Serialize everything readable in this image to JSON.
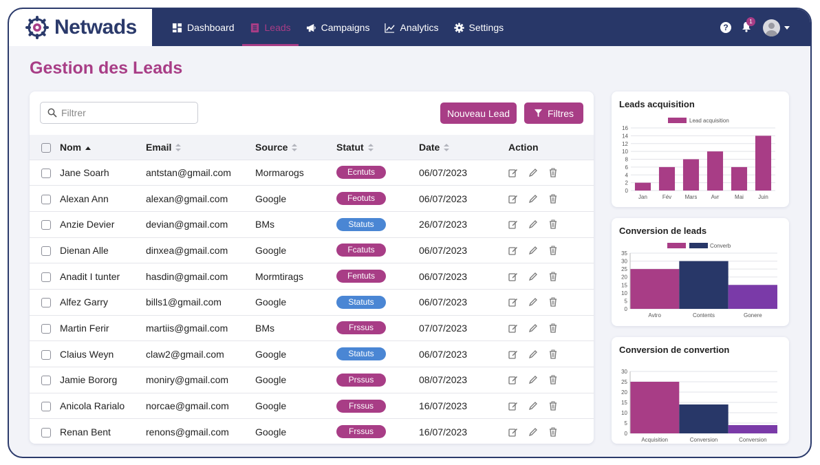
{
  "brand": {
    "name": "Netwads"
  },
  "nav": {
    "items": [
      {
        "label": "Dashboard",
        "icon": "dashboard-icon"
      },
      {
        "label": "Leads",
        "icon": "document-icon"
      },
      {
        "label": "Campaigns",
        "icon": "megaphone-icon"
      },
      {
        "label": "Analytics",
        "icon": "line-chart-icon"
      },
      {
        "label": "Settings",
        "icon": "gear-icon"
      }
    ],
    "active": "Leads",
    "help": "?",
    "notification_count": "1"
  },
  "page": {
    "title": "Gestion des Leads"
  },
  "toolbar": {
    "search_placeholder": "Filtrer",
    "new_label": "Nouveau Lead",
    "filter_label": "Filtres"
  },
  "table": {
    "headers": {
      "nom": "Nom",
      "email": "Email",
      "source": "Source",
      "statut": "Statut",
      "date": "Date",
      "action": "Action"
    },
    "rows": [
      {
        "nom": "Jane Soarh",
        "email": "antstan@gmail.com",
        "source": "Mormarogs",
        "statut": "Ecntuts",
        "statut_color": "#a83d86",
        "date": "06/07/2023"
      },
      {
        "nom": "Alexan Ann",
        "email": "alexan@gmail.com",
        "source": "Google",
        "statut": "Feotuts",
        "statut_color": "#a83d86",
        "date": "06/07/2023"
      },
      {
        "nom": "Anzie Devier",
        "email": "devian@gmail.com",
        "source": "BMs",
        "statut": "Statuts",
        "statut_color": "#4a86d4",
        "date": "26/07/2023"
      },
      {
        "nom": "Dienan Alle",
        "email": "dinxea@gmail.com",
        "source": "Google",
        "statut": "Fcatuts",
        "statut_color": "#a83d86",
        "date": "06/07/2023"
      },
      {
        "nom": "Anadit I tunter",
        "email": "hasdin@gmail.com",
        "source": "Mormtirags",
        "statut": "Fentuts",
        "statut_color": "#a83d86",
        "date": "06/07/2023"
      },
      {
        "nom": "Alfez Garry",
        "email": "bills1@gmail.com",
        "source": "Google",
        "statut": "Statuts",
        "statut_color": "#4a86d4",
        "date": "06/07/2023"
      },
      {
        "nom": "Martin Ferir",
        "email": "martiis@gmail.com",
        "source": "BMs",
        "statut": "Frssus",
        "statut_color": "#a83d86",
        "date": "07/07/2023"
      },
      {
        "nom": "Claius Weyn",
        "email": "claw2@gmail.com",
        "source": "Google",
        "statut": "Statuts",
        "statut_color": "#4a86d4",
        "date": "06/07/2023"
      },
      {
        "nom": "Jamie Bororg",
        "email": "moniry@gmail.com",
        "source": "Google",
        "statut": "Prssus",
        "statut_color": "#a83d86",
        "date": "08/07/2023"
      },
      {
        "nom": "Anicola Rarialo",
        "email": "norcae@gmail.com",
        "source": "Google",
        "statut": "Frssus",
        "statut_color": "#a83d86",
        "date": "16/07/2023"
      },
      {
        "nom": "Renan Bent",
        "email": "renons@gmail.com",
        "source": "Google",
        "statut": "Frssus",
        "statut_color": "#a83d86",
        "date": "16/07/2023"
      }
    ]
  },
  "colors": {
    "brand": "#2b3a6b",
    "accent": "#a83d86",
    "navy": "#283768",
    "info": "#4a86d4",
    "purple": "#7a3aa8"
  },
  "chart_data": [
    {
      "type": "bar",
      "title": "Leads acquisition",
      "categories": [
        "Jan",
        "Fév",
        "Mars",
        "Avr",
        "Mai",
        "Juin"
      ],
      "series": [
        {
          "name": "Lead acquisition",
          "values": [
            2,
            6,
            8,
            10,
            6,
            14
          ],
          "color": "#a83d86"
        }
      ],
      "ylim": [
        0,
        16
      ],
      "yticks": [
        0,
        2,
        4,
        6,
        8,
        10,
        12,
        14,
        16
      ],
      "legend": "top",
      "grid": true
    },
    {
      "type": "bar",
      "title": "Conversion de leads",
      "categories": [
        "Avtro",
        "Contents",
        "Gonere"
      ],
      "values": [
        25,
        30,
        15
      ],
      "colors": [
        "#a83d86",
        "#283768",
        "#7a3aa8"
      ],
      "legend_items": [
        {
          "name": "",
          "color": "#a83d86"
        },
        {
          "name": "Converb",
          "color": "#283768"
        }
      ],
      "ylim": [
        0,
        35
      ],
      "yticks": [
        0,
        5,
        10,
        15,
        20,
        25,
        30,
        35
      ],
      "legend": "top",
      "grid": true
    },
    {
      "type": "bar",
      "title": "Conversion de convertion",
      "categories": [
        "Acquisition",
        "Conversion",
        "Conversion"
      ],
      "values": [
        25,
        14,
        4
      ],
      "colors": [
        "#a83d86",
        "#283768",
        "#7a3aa8"
      ],
      "ylim": [
        0,
        30
      ],
      "yticks": [
        0,
        5,
        10,
        15,
        20,
        25,
        30
      ],
      "grid": true
    }
  ]
}
